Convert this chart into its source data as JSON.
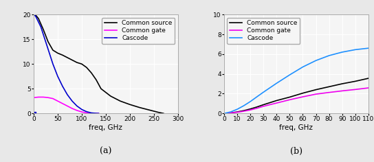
{
  "panel_a": {
    "title": "(a)",
    "xlabel": "freq, GHz",
    "xlim": [
      0,
      300
    ],
    "ylim": [
      0,
      20
    ],
    "yticks": [
      0,
      5,
      10,
      15,
      20
    ],
    "xticks": [
      0,
      50,
      100,
      150,
      200,
      250,
      300
    ],
    "common_source": {
      "color": "#000000",
      "label": "Common source",
      "x": [
        1,
        5,
        10,
        20,
        30,
        40,
        50,
        60,
        70,
        80,
        90,
        100,
        110,
        120,
        130,
        140,
        160,
        180,
        200,
        220,
        240,
        260,
        270
      ],
      "y": [
        20,
        19.8,
        19.2,
        17.0,
        14.5,
        12.8,
        12.2,
        11.8,
        11.3,
        10.8,
        10.3,
        10.0,
        9.3,
        8.2,
        6.8,
        5.0,
        3.5,
        2.5,
        1.8,
        1.2,
        0.7,
        0.2,
        0.0
      ]
    },
    "common_gate": {
      "color": "#ff00ff",
      "label": "Common gate",
      "x": [
        1,
        10,
        20,
        30,
        40,
        50,
        60,
        70,
        80,
        90,
        100,
        110,
        120,
        130,
        135
      ],
      "y": [
        3.2,
        3.3,
        3.3,
        3.2,
        3.0,
        2.5,
        2.0,
        1.5,
        1.0,
        0.6,
        0.3,
        0.1,
        0.02,
        0.005,
        0.0
      ]
    },
    "cascode": {
      "color": "#0000cc",
      "label": "Cascode",
      "x": [
        1,
        3,
        5,
        10,
        15,
        20,
        25,
        30,
        35,
        40,
        50,
        60,
        70,
        80,
        90,
        100,
        110,
        120,
        130,
        135
      ],
      "y": [
        20,
        19.8,
        19.5,
        18.5,
        17.5,
        16.0,
        14.5,
        13.0,
        11.5,
        10.0,
        7.5,
        5.5,
        3.8,
        2.5,
        1.5,
        0.8,
        0.35,
        0.1,
        0.02,
        0.0
      ]
    },
    "cascode_marker_x": 1,
    "cascode_marker_y": 0
  },
  "panel_b": {
    "title": "(b)",
    "xlabel": "freq, GHz",
    "xlim": [
      0,
      110
    ],
    "ylim": [
      0,
      10
    ],
    "yticks": [
      0,
      2,
      4,
      6,
      8,
      10
    ],
    "xticks": [
      0,
      10,
      20,
      30,
      40,
      50,
      60,
      70,
      80,
      90,
      100,
      110
    ],
    "common_source": {
      "color": "#000000",
      "label": "Common source",
      "x": [
        0,
        5,
        10,
        15,
        20,
        25,
        30,
        40,
        50,
        60,
        70,
        80,
        90,
        100,
        110
      ],
      "y": [
        0,
        0.05,
        0.15,
        0.28,
        0.45,
        0.65,
        0.88,
        1.3,
        1.65,
        2.05,
        2.4,
        2.7,
        3.0,
        3.25,
        3.55
      ]
    },
    "common_gate": {
      "color": "#ee00ee",
      "label": "Common gate",
      "x": [
        0,
        5,
        10,
        15,
        20,
        25,
        30,
        40,
        50,
        60,
        70,
        80,
        90,
        100,
        110
      ],
      "y": [
        0,
        0.05,
        0.12,
        0.22,
        0.35,
        0.52,
        0.72,
        1.05,
        1.38,
        1.68,
        1.95,
        2.12,
        2.28,
        2.42,
        2.58
      ]
    },
    "cascode": {
      "color": "#1e90ff",
      "label": "Cascode",
      "x": [
        0,
        5,
        10,
        15,
        20,
        25,
        30,
        40,
        50,
        60,
        70,
        80,
        90,
        100,
        110
      ],
      "y": [
        0,
        0.15,
        0.42,
        0.78,
        1.2,
        1.68,
        2.15,
        3.05,
        3.9,
        4.7,
        5.35,
        5.85,
        6.2,
        6.45,
        6.6
      ]
    }
  },
  "fig_background": "#e8e8e8",
  "ax_background": "#f5f5f5",
  "grid_color": "#ffffff",
  "line_width": 1.2,
  "legend_fontsize": 6.5,
  "tick_fontsize": 6.5,
  "label_fontsize": 7.5,
  "title_fontsize": 9
}
